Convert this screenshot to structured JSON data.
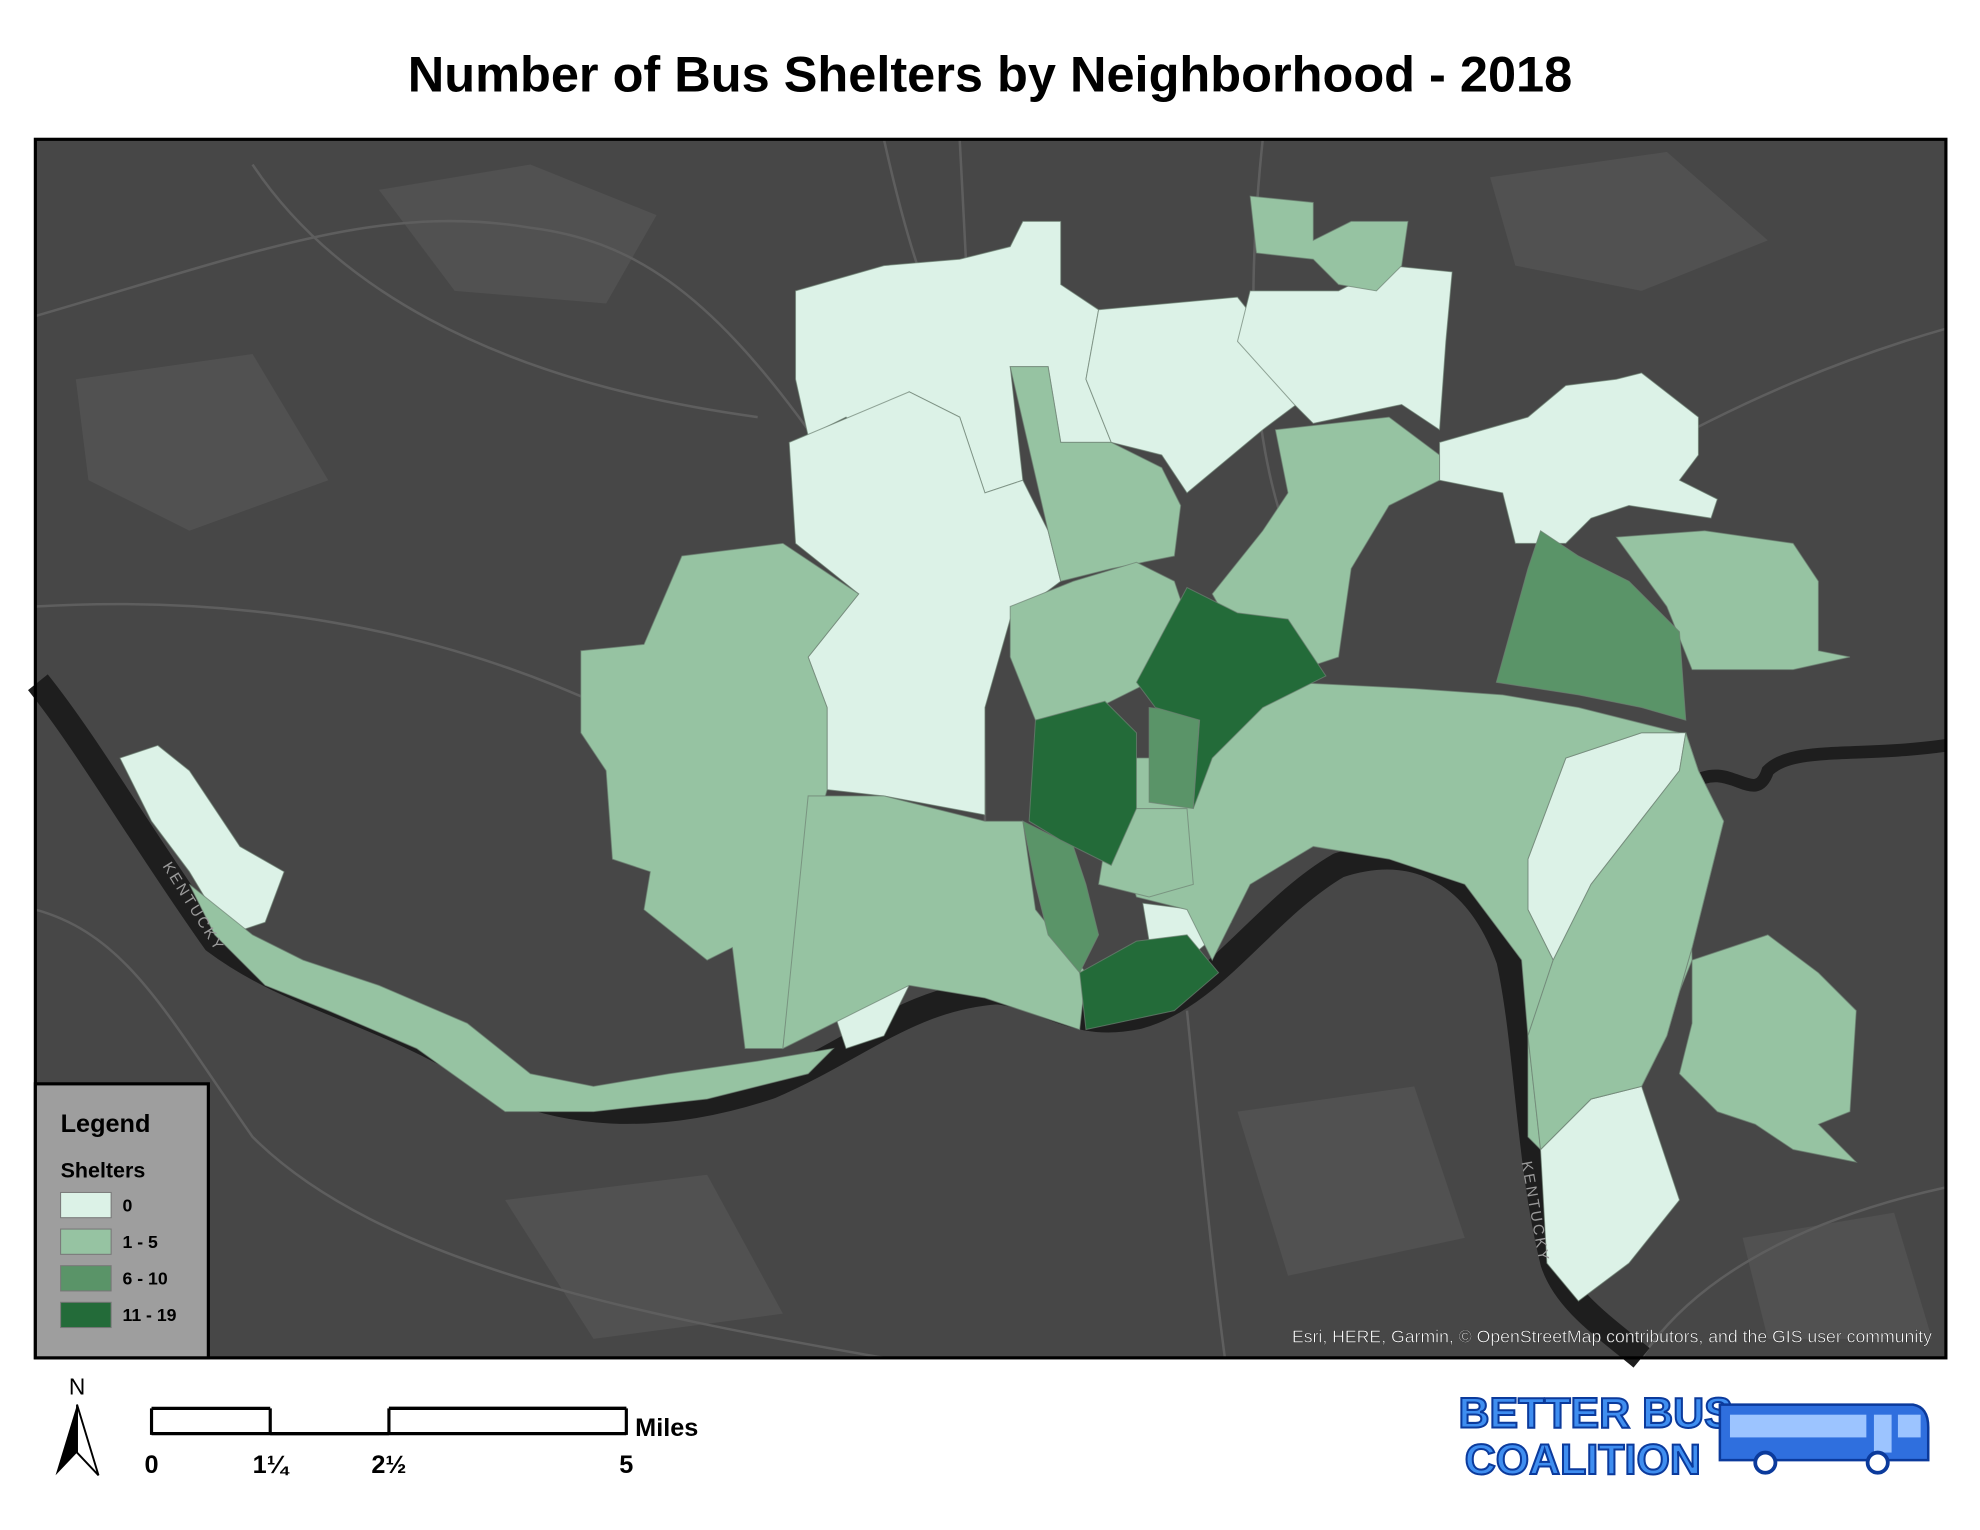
{
  "title": "Number of Bus Shelters by Neighborhood - 2018",
  "legend": {
    "title": "Legend",
    "subtitle": "Shelters",
    "classes": [
      {
        "label": "0",
        "color": "#dcf2e7"
      },
      {
        "label": "1 - 5",
        "color": "#96c3a2"
      },
      {
        "label": "6 - 10",
        "color": "#5a9468"
      },
      {
        "label": "11 - 19",
        "color": "#236b39"
      }
    ]
  },
  "map_labels": [
    "KENTUCKY",
    "KENTUCKY"
  ],
  "attribution": "Esri, HERE, Garmin, © OpenStreetMap contributors, and the GIS user community",
  "north_arrow": "N",
  "scale_bar": {
    "unit": "Miles",
    "ticks": [
      {
        "value": 0,
        "label": "0"
      },
      {
        "value": 1.25,
        "label": "1¼"
      },
      {
        "value": 2.5,
        "label": "2½"
      },
      {
        "value": 5,
        "label": "5"
      }
    ]
  },
  "logo": [
    "BETTER BUS",
    "COALITION"
  ]
}
